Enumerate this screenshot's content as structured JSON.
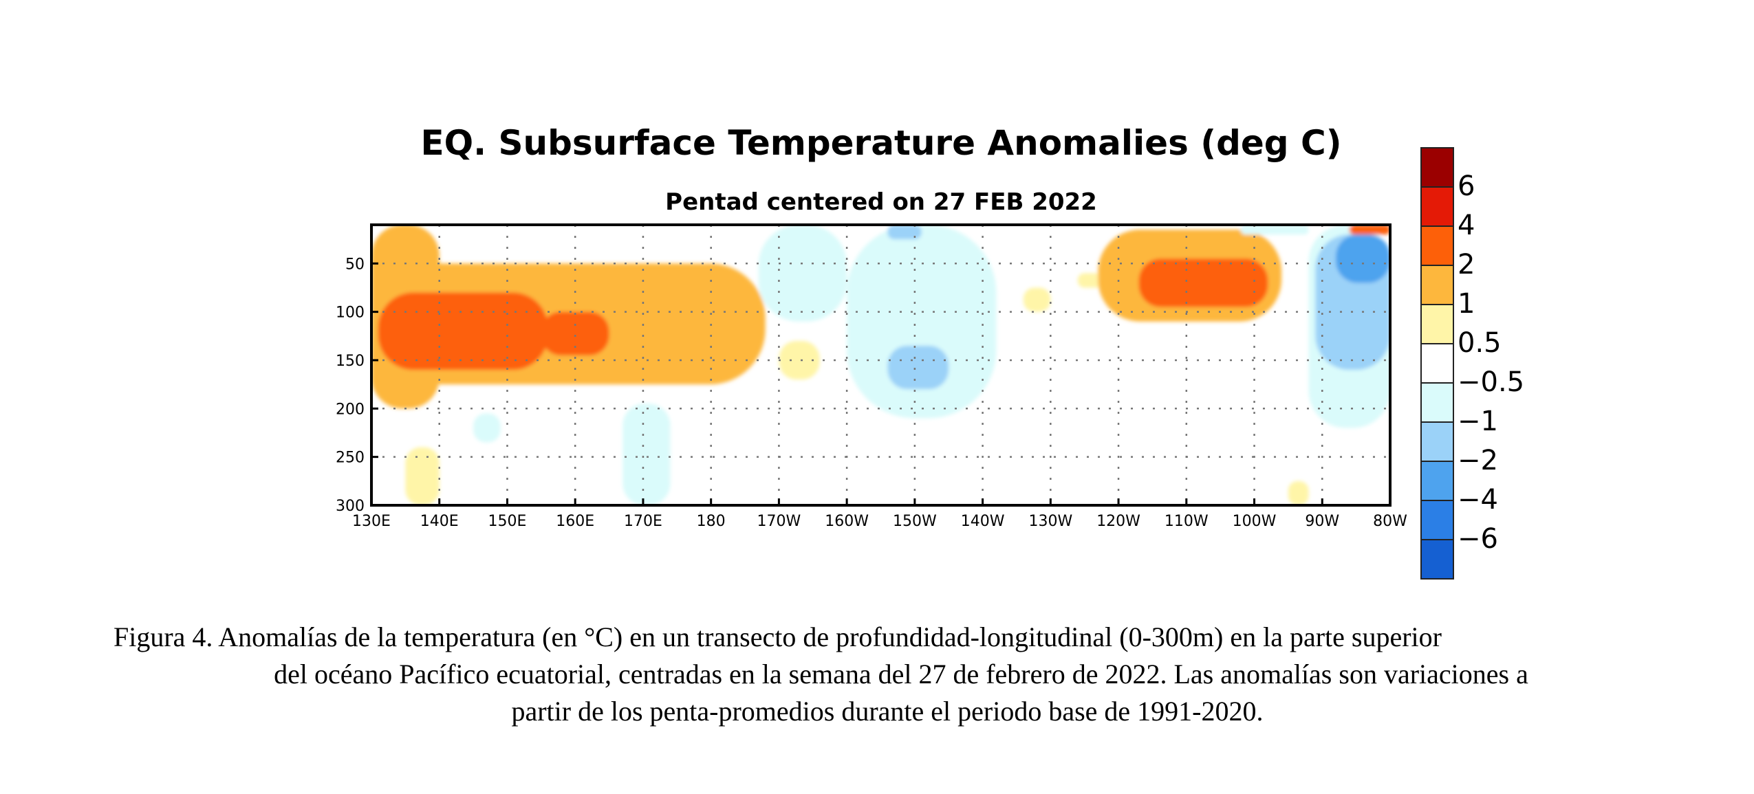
{
  "chart_data": {
    "type": "heatmap",
    "title": "EQ. Subsurface Temperature Anomalies (deg C)",
    "subtitle": "Pentad centered on 27 FEB 2022",
    "x_ticks": [
      "130E",
      "140E",
      "150E",
      "160E",
      "170E",
      "180",
      "170W",
      "160W",
      "150W",
      "140W",
      "130W",
      "120W",
      "110W",
      "100W",
      "90W",
      "80W"
    ],
    "x_range_deg_east": [
      130,
      280
    ],
    "y_ticks": [
      "50",
      "100",
      "150",
      "200",
      "250",
      "300"
    ],
    "y_range_m": [
      10,
      300
    ],
    "y_reversed": true,
    "grid": true,
    "colorbar": {
      "placement": "right",
      "bins": [
        {
          "color": "#9b0000",
          "label": ""
        },
        {
          "color": "#e41a06",
          "label": "6"
        },
        {
          "color": "#fd6009",
          "label": "4"
        },
        {
          "color": "#fdb73d",
          "label": "2"
        },
        {
          "color": "#fff5a8",
          "label": "1"
        },
        {
          "color": "#ffffff",
          "label": "0.5"
        },
        {
          "color": "#dafbfb",
          "label": "−0.5"
        },
        {
          "color": "#9bd2f8",
          "label": "−1"
        },
        {
          "color": "#4ea3ee",
          "label": "−2"
        },
        {
          "color": "#2b7fe6",
          "label": "−4"
        },
        {
          "color": "#1560d2",
          "label": "−6"
        }
      ]
    },
    "anomaly_features": [
      {
        "lon_range": [
          130,
          140
        ],
        "depth_range_m": [
          10,
          200
        ],
        "value": 1,
        "description": "warm"
      },
      {
        "lon_range": [
          130,
          188
        ],
        "depth_range_m": [
          50,
          175
        ],
        "value": 1
      },
      {
        "lon_range": [
          131,
          156
        ],
        "depth_range_m": [
          80,
          160
        ],
        "value": 2
      },
      {
        "lon_range": [
          155,
          165
        ],
        "depth_range_m": [
          100,
          145
        ],
        "value": 2
      },
      {
        "lon_range": [
          135,
          140
        ],
        "depth_range_m": [
          240,
          300
        ],
        "value": 0.5
      },
      {
        "lon_range": [
          145,
          149
        ],
        "depth_range_m": [
          205,
          235
        ],
        "value": -0.5
      },
      {
        "lon_range": [
          167,
          174
        ],
        "depth_range_m": [
          195,
          300
        ],
        "value": -0.5
      },
      {
        "lon_range": [
          187,
          200
        ],
        "depth_range_m": [
          10,
          110
        ],
        "value": -0.5
      },
      {
        "lon_range": [
          200,
          222
        ],
        "depth_range_m": [
          10,
          210
        ],
        "value": -0.5
      },
      {
        "lon_range": [
          206,
          215
        ],
        "depth_range_m": [
          135,
          180
        ],
        "value": -1
      },
      {
        "lon_range": [
          206,
          211
        ],
        "depth_range_m": [
          10,
          25
        ],
        "value": -1
      },
      {
        "lon_range": [
          190,
          196
        ],
        "depth_range_m": [
          130,
          170
        ],
        "value": 0.5
      },
      {
        "lon_range": [
          226,
          230
        ],
        "depth_range_m": [
          75,
          100
        ],
        "value": 0.5
      },
      {
        "lon_range": [
          234,
          238
        ],
        "depth_range_m": [
          60,
          75
        ],
        "value": 0.5
      },
      {
        "lon_range": [
          237,
          264
        ],
        "depth_range_m": [
          15,
          110
        ],
        "value": 1
      },
      {
        "lon_range": [
          243,
          262
        ],
        "depth_range_m": [
          45,
          95
        ],
        "value": 2
      },
      {
        "lon_range": [
          258,
          268
        ],
        "depth_range_m": [
          10,
          20
        ],
        "value": -0.5
      },
      {
        "lon_range": [
          268,
          280
        ],
        "depth_range_m": [
          10,
          220
        ],
        "value": -0.5
      },
      {
        "lon_range": [
          269,
          280
        ],
        "depth_range_m": [
          20,
          160
        ],
        "value": -1
      },
      {
        "lon_range": [
          272,
          280
        ],
        "depth_range_m": [
          20,
          70
        ],
        "value": -2
      },
      {
        "lon_range": [
          274,
          280
        ],
        "depth_range_m": [
          10,
          20
        ],
        "value": 2
      },
      {
        "lon_range": [
          265,
          268
        ],
        "depth_range_m": [
          275,
          300
        ],
        "value": 0.5
      }
    ]
  },
  "caption": {
    "line1": "Figura 4. Anomalías de la temperatura (en °C) en un transecto de profundidad-longitudinal (0-300m) en la parte superior",
    "line2": "del océano Pacífico ecuatorial, centradas en la semana del 27 de febrero de 2022. Las anomalías son variaciones a",
    "line3": "partir de los penta-promedios durante el periodo base de 1991-2020."
  }
}
